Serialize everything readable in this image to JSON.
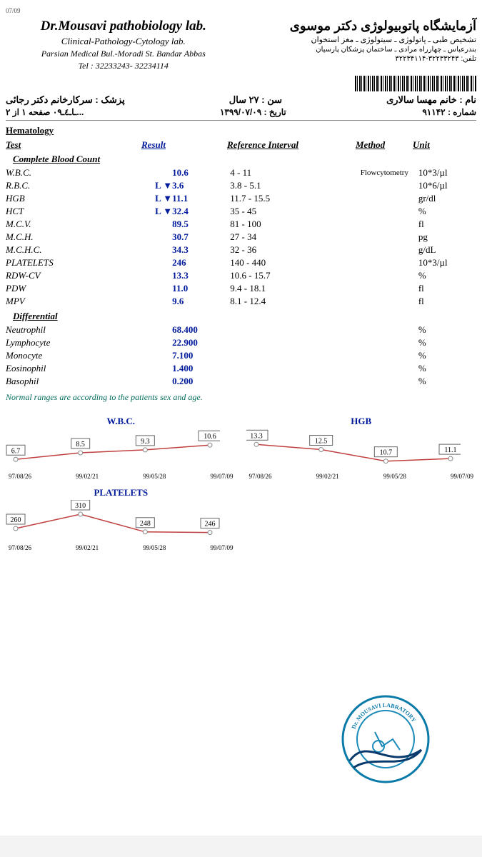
{
  "print_date": "07/09",
  "header": {
    "lab_en": "Dr.Mousavi pathobiology lab.",
    "lab_en_sub": "Clinical-Pathology-Cytology lab.",
    "address_en": "Parsian Medical Bul.-Moradi St. Bandar Abbas",
    "tel_en": "Tel : 32233243- 32234114",
    "lab_fa": "آزمایشگاه پاتوبیولوژی دکتر موسوی",
    "lab_fa_sub": "تشخیص طبی ـ پاتولوژی ـ سیتولوژی ـ مغز استخوان",
    "address_fa": "بندرعباس ـ چهارراه مرادی ـ ساختمان پزشکان پارسیان",
    "tel_fa": "تلفن: ۳۲۲۳۳۲۴۳-۳۲۲۳۴۱۱۴"
  },
  "patient": {
    "name_label": "نام :",
    "name": "خانم مهسا سالاری",
    "age_label": "سن :",
    "age": "۲۷ سال",
    "dr_label": "پزشک :",
    "dr": "سرکارخانم دکتر رجائی",
    "no_label": "شماره :",
    "no": "۹۱۱۴۲",
    "date_label": "تاریخ :",
    "date": "۱۳۹۹/۰۷/۰۹",
    "footer_left": "...ـاـ٤ـ٠٩ ص‍فحه ١ از ٢"
  },
  "table": {
    "section": "Hematology",
    "hdr_test": "Test",
    "hdr_result": "Result",
    "hdr_ref": "Reference Interval",
    "hdr_method": "Method",
    "hdr_unit": "Unit",
    "group1": "Complete Blood Count",
    "rows1": [
      {
        "name": "W.B.C.",
        "flag": "",
        "val": "10.6",
        "ref": "4 - 11",
        "meth": "Flowcytometry",
        "unit": "10*3/µl"
      },
      {
        "name": "R.B.C.",
        "flag": "L ▼",
        "val": "3.6",
        "ref": "3.8 - 5.1",
        "meth": "",
        "unit": "10*6/µl"
      },
      {
        "name": "HGB",
        "flag": "L ▼",
        "val": "11.1",
        "ref": "11.7 - 15.5",
        "meth": "",
        "unit": "gr/dl"
      },
      {
        "name": "HCT",
        "flag": "L ▼",
        "val": "32.4",
        "ref": "35 - 45",
        "meth": "",
        "unit": "%"
      },
      {
        "name": "M.C.V.",
        "flag": "",
        "val": "89.5",
        "ref": "81 - 100",
        "meth": "",
        "unit": "fl"
      },
      {
        "name": "M.C.H.",
        "flag": "",
        "val": "30.7",
        "ref": "27 - 34",
        "meth": "",
        "unit": "pg"
      },
      {
        "name": "M.C.H.C.",
        "flag": "",
        "val": "34.3",
        "ref": "32 - 36",
        "meth": "",
        "unit": "g/dL"
      },
      {
        "name": "PLATELETS",
        "flag": "",
        "val": "246",
        "ref": "140 - 440",
        "meth": "",
        "unit": "10*3/µl"
      },
      {
        "name": "RDW-CV",
        "flag": "",
        "val": "13.3",
        "ref": "10.6 - 15.7",
        "meth": "",
        "unit": "%"
      },
      {
        "name": "PDW",
        "flag": "",
        "val": "11.0",
        "ref": "9.4 - 18.1",
        "meth": "",
        "unit": "fl"
      },
      {
        "name": "MPV",
        "flag": "",
        "val": "9.6",
        "ref": "8.1 - 12.4",
        "meth": "",
        "unit": "fl"
      }
    ],
    "group2": "Differential",
    "rows2": [
      {
        "name": "Neutrophil",
        "flag": "",
        "val": "68.400",
        "ref": "",
        "meth": "",
        "unit": "%"
      },
      {
        "name": "Lymphocyte",
        "flag": "",
        "val": "22.900",
        "ref": "",
        "meth": "",
        "unit": "%"
      },
      {
        "name": "Monocyte",
        "flag": "",
        "val": "7.100",
        "ref": "",
        "meth": "",
        "unit": "%"
      },
      {
        "name": "Eosinophil",
        "flag": "",
        "val": "1.400",
        "ref": "",
        "meth": "",
        "unit": "%"
      },
      {
        "name": "Basophil",
        "flag": "",
        "val": "0.200",
        "ref": "",
        "meth": "",
        "unit": "%"
      }
    ],
    "note": "Normal ranges are according to the patients sex and age."
  },
  "charts": {
    "dates": [
      "97/08/26",
      "99/02/21",
      "99/05/28",
      "99/07/09"
    ],
    "wbc": {
      "title": "W.B.C.",
      "values": [
        6.7,
        8.5,
        9.3,
        10.6
      ],
      "ymin": 5,
      "ymax": 12,
      "line_color": "#c04040",
      "point_color": "#888",
      "box_border": "#666"
    },
    "hgb": {
      "title": "HGB",
      "values": [
        13.3,
        12.5,
        10.7,
        11.1
      ],
      "ymin": 10,
      "ymax": 14,
      "line_color": "#c04040",
      "point_color": "#888",
      "box_border": "#666"
    },
    "plt": {
      "title": "PLATELETS",
      "values": [
        260,
        310,
        248,
        246
      ],
      "ymin": 230,
      "ymax": 320,
      "line_color": "#c04040",
      "point_color": "#888",
      "box_border": "#666"
    }
  },
  "stamp": {
    "outer": "#0a7aa8",
    "inner": "#1a8ab8",
    "text_top": "Dr. MOUSAVI LABRATORY",
    "sig_color": "#0a3a6b"
  }
}
